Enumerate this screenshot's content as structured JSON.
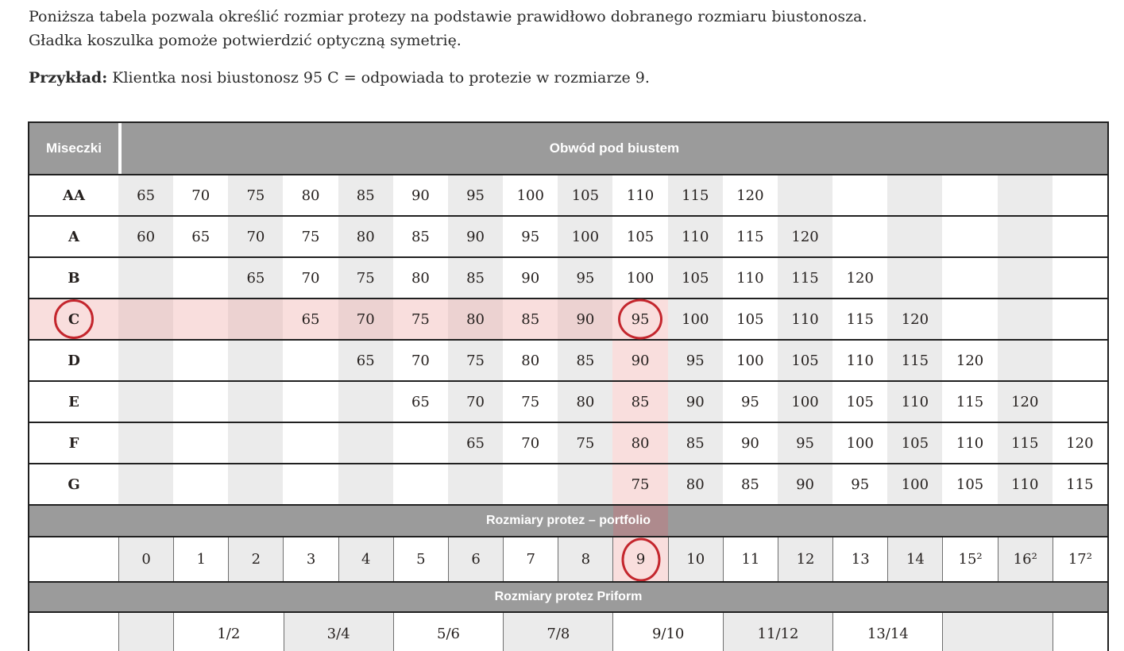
{
  "intro": {
    "line1": "Poniższa tabela pozwala określić rozmiar protezy na podstawie prawidłowo dobranego rozmiaru biustonosza.",
    "line2": "Gładka koszulka pomoże potwierdzić optyczną symetrię.",
    "example_label": "Przykład:",
    "example_text": " Klientka nosi biustonosz 95 C = odpowiada to protezie w rozmiarze 9."
  },
  "table": {
    "corner_header": "Miseczki",
    "span_header": "Obwód pod biustem",
    "portfolio_band": "Rozmiary protez – portfolio",
    "priform_band": "Rozmiary protez Priform",
    "cups": [
      {
        "label": "AA",
        "values": [
          65,
          70,
          75,
          80,
          85,
          90,
          95,
          100,
          105,
          110,
          115,
          120,
          null,
          null,
          null,
          null,
          null,
          null
        ]
      },
      {
        "label": "A",
        "values": [
          60,
          65,
          70,
          75,
          80,
          85,
          90,
          95,
          100,
          105,
          110,
          115,
          120,
          null,
          null,
          null,
          null,
          null
        ]
      },
      {
        "label": "B",
        "values": [
          null,
          null,
          65,
          70,
          75,
          80,
          85,
          90,
          95,
          100,
          105,
          110,
          115,
          120,
          null,
          null,
          null,
          null
        ]
      },
      {
        "label": "C",
        "values": [
          null,
          null,
          null,
          65,
          70,
          75,
          80,
          85,
          90,
          95,
          100,
          105,
          110,
          115,
          120,
          null,
          null,
          null
        ]
      },
      {
        "label": "D",
        "values": [
          null,
          null,
          null,
          null,
          65,
          70,
          75,
          80,
          85,
          90,
          95,
          100,
          105,
          110,
          115,
          120,
          null,
          null
        ]
      },
      {
        "label": "E",
        "values": [
          null,
          null,
          null,
          null,
          null,
          65,
          70,
          75,
          80,
          85,
          90,
          95,
          100,
          105,
          110,
          115,
          120,
          null
        ]
      },
      {
        "label": "F",
        "values": [
          null,
          null,
          null,
          null,
          null,
          null,
          65,
          70,
          75,
          80,
          85,
          90,
          95,
          100,
          105,
          110,
          115,
          120
        ]
      },
      {
        "label": "G",
        "values": [
          null,
          null,
          null,
          null,
          null,
          null,
          null,
          null,
          null,
          75,
          80,
          85,
          90,
          95,
          100,
          105,
          110,
          115
        ]
      }
    ],
    "sizes": [
      "0",
      "1",
      "2",
      "3",
      "4",
      "5",
      "6",
      "7",
      "8",
      "9",
      "10",
      "11",
      "12",
      "13",
      "14",
      "15²",
      "16²",
      "17²"
    ],
    "priform": [
      {
        "label": "",
        "span": 1,
        "shaded": true
      },
      {
        "label": "1/2",
        "span": 2,
        "shaded": false
      },
      {
        "label": "3/4",
        "span": 2,
        "shaded": true
      },
      {
        "label": "5/6",
        "span": 2,
        "shaded": false
      },
      {
        "label": "7/8",
        "span": 2,
        "shaded": true
      },
      {
        "label": "9/10",
        "span": 2,
        "shaded": false
      },
      {
        "label": "11/12",
        "span": 2,
        "shaded": true
      },
      {
        "label": "13/14",
        "span": 2,
        "shaded": false
      },
      {
        "label": "",
        "span": 2,
        "shaded": true
      },
      {
        "label": "",
        "span": 1,
        "shaded": false
      }
    ],
    "highlight": {
      "cup": "C",
      "col_index": 9,
      "circled_cup": "C",
      "circled_value": "95",
      "circled_size": "9"
    }
  },
  "colors": {
    "band_gray": "#9b9b9b",
    "column_shade_gray": "#ebebeb",
    "highlight_pink": "#f9dedd",
    "highlight_pink_on_shade": "#ecd2d1",
    "band_pink_tint": "#ae8a8d",
    "circle_red": "#c4262d",
    "border_dark": "#202020"
  }
}
